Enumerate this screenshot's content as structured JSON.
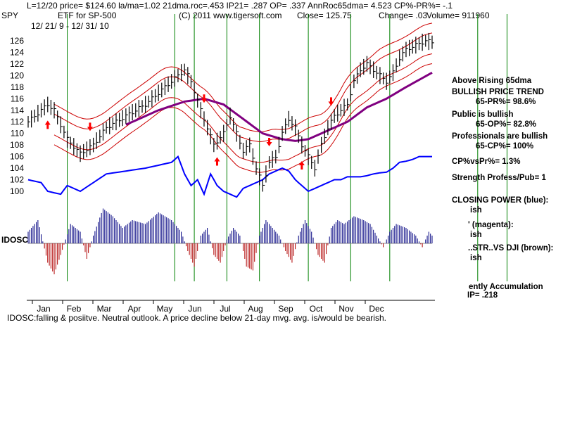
{
  "header": {
    "line1": "L=12/20  price= $124.60  la/ma=1.02 21dma.roc=.453 IP21= .287 OP= .337 AnnRoc65dma= 4.523 CP%-PR%= -.1",
    "symbol": "SPY",
    "name": "ETF for SP-500",
    "copyright": "(C) 2011 www.tigersoft.com",
    "close": "Close=   125.75",
    "change": "Change= .03",
    "volume": "Volume=  911960",
    "date_range": "12/ 21/ 9 - 12/ 31/ 10"
  },
  "indicator_label": "IDOSC",
  "footer": "IDOSC:falling & posiitve. Neutral outlook. A price decline below 21-day mvg. avg. is/would be bearish.",
  "side_panel": [
    "Above Rising 65dma",
    "BULLISH PRICE TREND",
    "65-PR%= 98.6%",
    "Public is bullish",
    "65-OP%= 82.8%",
    "Professionals are bullish",
    "65-CP%= 100%",
    "CP%vsPr%=  1.3%",
    "Strength Profess/Pub= 1",
    "CLOSING POWER (blue):",
    "ish",
    "' (magenta):",
    "ish",
    "..STR..VS DJI (brown):",
    "ish",
    "ently Accumulation",
    "IP=  .218"
  ],
  "colors": {
    "price": "#000000",
    "bands": "#cc0000",
    "ma65": "#800080",
    "closing_power": "#0000ff",
    "magenta": "#ff00ff",
    "signal_lines": "#008000",
    "osc_pos": "#000080",
    "osc_neg": "#b00000",
    "arrows": "#ff0000"
  },
  "chart_data": {
    "type": "line",
    "title": "ETF for SP-500",
    "ylim": [
      99,
      127
    ],
    "y_ticks": [
      100,
      102,
      104,
      106,
      108,
      110,
      112,
      114,
      116,
      118,
      120,
      122,
      124,
      126
    ],
    "months": [
      "Jan",
      "Feb",
      "Mar",
      "Apr",
      "May",
      "Jun",
      "Jul",
      "Aug",
      "Sep",
      "Oct",
      "Nov",
      "Dec"
    ],
    "signal_dates_idx": [
      12,
      45,
      51,
      61,
      71,
      86,
      99,
      111,
      138,
      147
    ],
    "price_anchors": [
      [
        0,
        112
      ],
      [
        6,
        115
      ],
      [
        8,
        114
      ],
      [
        12,
        109
      ],
      [
        16,
        106.5
      ],
      [
        20,
        108
      ],
      [
        24,
        111
      ],
      [
        30,
        113
      ],
      [
        36,
        115
      ],
      [
        42,
        118
      ],
      [
        46,
        120
      ],
      [
        48,
        121
      ],
      [
        50,
        119
      ],
      [
        53,
        114
      ],
      [
        55,
        111
      ],
      [
        57,
        108
      ],
      [
        60,
        110
      ],
      [
        62,
        113
      ],
      [
        64,
        110
      ],
      [
        66,
        107
      ],
      [
        68,
        108
      ],
      [
        70,
        104
      ],
      [
        72,
        101
      ],
      [
        74,
        105
      ],
      [
        76,
        106
      ],
      [
        78,
        110
      ],
      [
        80,
        112.5
      ],
      [
        82,
        111
      ],
      [
        84,
        108
      ],
      [
        86,
        106
      ],
      [
        88,
        104
      ],
      [
        90,
        108
      ],
      [
        92,
        111
      ],
      [
        94,
        113
      ],
      [
        96,
        114
      ],
      [
        98,
        115
      ],
      [
        100,
        119
      ],
      [
        102,
        121
      ],
      [
        104,
        122
      ],
      [
        106,
        121
      ],
      [
        108,
        120
      ],
      [
        110,
        119
      ],
      [
        112,
        120.5
      ],
      [
        114,
        123
      ],
      [
        116,
        124.5
      ],
      [
        118,
        125
      ],
      [
        120,
        125.5
      ],
      [
        122,
        126
      ],
      [
        124,
        125.75
      ]
    ],
    "ma65_anchors": [
      [
        30,
        111.5
      ],
      [
        40,
        114
      ],
      [
        48,
        115.5
      ],
      [
        54,
        116
      ],
      [
        60,
        115
      ],
      [
        66,
        112.5
      ],
      [
        72,
        110
      ],
      [
        78,
        109
      ],
      [
        82,
        108.7
      ],
      [
        86,
        109
      ],
      [
        92,
        110.5
      ],
      [
        98,
        112
      ],
      [
        104,
        114.5
      ],
      [
        110,
        116
      ],
      [
        116,
        118
      ],
      [
        124,
        120.5
      ]
    ],
    "closing_power_anchors": [
      [
        0,
        102
      ],
      [
        4,
        101.5
      ],
      [
        6,
        100
      ],
      [
        10,
        99.5
      ],
      [
        12,
        101
      ],
      [
        16,
        100
      ],
      [
        20,
        101.5
      ],
      [
        24,
        103
      ],
      [
        30,
        103.5
      ],
      [
        36,
        104
      ],
      [
        40,
        104.5
      ],
      [
        44,
        105
      ],
      [
        46,
        106
      ],
      [
        48,
        103
      ],
      [
        50,
        101
      ],
      [
        52,
        102
      ],
      [
        54,
        99.5
      ],
      [
        56,
        103
      ],
      [
        58,
        101
      ],
      [
        60,
        100
      ],
      [
        62,
        99.5
      ],
      [
        64,
        99
      ],
      [
        66,
        100.5
      ],
      [
        68,
        101
      ],
      [
        70,
        101.5
      ],
      [
        72,
        102
      ],
      [
        74,
        103
      ],
      [
        76,
        103.5
      ],
      [
        78,
        104
      ],
      [
        80,
        103.5
      ],
      [
        82,
        102
      ],
      [
        84,
        101
      ],
      [
        86,
        100
      ],
      [
        88,
        100.5
      ],
      [
        90,
        101
      ],
      [
        92,
        101.5
      ],
      [
        94,
        102
      ],
      [
        96,
        102
      ],
      [
        98,
        102.5
      ],
      [
        100,
        102.5
      ],
      [
        102,
        102.5
      ],
      [
        104,
        102.7
      ],
      [
        106,
        103
      ],
      [
        108,
        103.2
      ],
      [
        110,
        103.3
      ],
      [
        112,
        104
      ],
      [
        114,
        105
      ],
      [
        116,
        105.2
      ],
      [
        118,
        105.5
      ],
      [
        120,
        106
      ],
      [
        124,
        106
      ]
    ],
    "up_arrows_idx": [
      6,
      58,
      84
    ],
    "down_arrows_idx": [
      19,
      54,
      74,
      93
    ],
    "osc_anchors": [
      [
        0,
        0.3
      ],
      [
        3,
        0.6
      ],
      [
        6,
        -0.5
      ],
      [
        8,
        -0.8
      ],
      [
        10,
        -0.3
      ],
      [
        13,
        0.5
      ],
      [
        16,
        0.3
      ],
      [
        18,
        -0.4
      ],
      [
        20,
        0.2
      ],
      [
        23,
        0.9
      ],
      [
        26,
        0.7
      ],
      [
        29,
        0.4
      ],
      [
        32,
        0.6
      ],
      [
        36,
        0.5
      ],
      [
        40,
        0.8
      ],
      [
        44,
        0.6
      ],
      [
        47,
        0.3
      ],
      [
        49,
        -0.2
      ],
      [
        51,
        -0.6
      ],
      [
        53,
        0.2
      ],
      [
        55,
        0.4
      ],
      [
        57,
        -0.3
      ],
      [
        59,
        -0.5
      ],
      [
        61,
        0.1
      ],
      [
        63,
        0.4
      ],
      [
        65,
        0.2
      ],
      [
        67,
        -0.6
      ],
      [
        69,
        -0.7
      ],
      [
        71,
        0.2
      ],
      [
        73,
        0.6
      ],
      [
        75,
        0.4
      ],
      [
        77,
        0.2
      ],
      [
        79,
        -0.2
      ],
      [
        81,
        -0.5
      ],
      [
        83,
        0.2
      ],
      [
        85,
        0.6
      ],
      [
        87,
        0.3
      ],
      [
        89,
        -0.3
      ],
      [
        91,
        -0.5
      ],
      [
        93,
        0.4
      ],
      [
        95,
        0.6
      ],
      [
        97,
        0.5
      ],
      [
        100,
        0.7
      ],
      [
        103,
        0.6
      ],
      [
        105,
        0.5
      ],
      [
        107,
        0.2
      ],
      [
        109,
        -0.1
      ],
      [
        111,
        0.3
      ],
      [
        113,
        0.5
      ],
      [
        116,
        0.4
      ],
      [
        119,
        0.2
      ],
      [
        121,
        -0.1
      ],
      [
        123,
        0.3
      ],
      [
        124,
        0.2
      ]
    ]
  }
}
